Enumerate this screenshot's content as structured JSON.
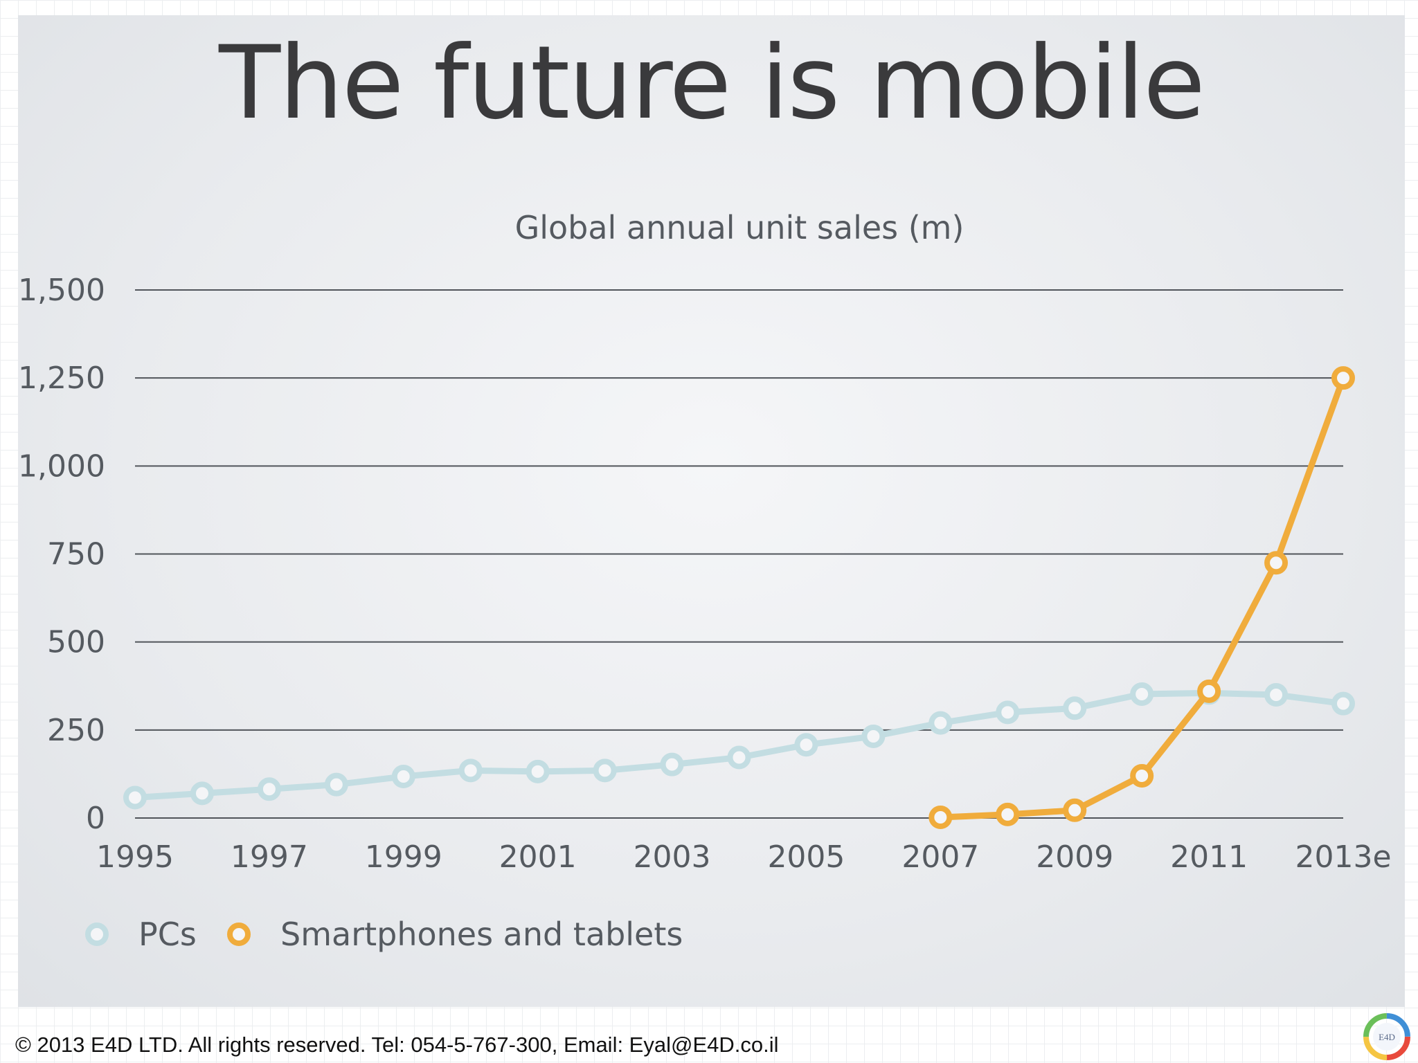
{
  "slide": {
    "title": "The future is mobile"
  },
  "chart_data": {
    "type": "line",
    "title": "Global annual unit sales (m)",
    "xlabel": "",
    "ylabel": "",
    "ylim": [
      0,
      1500
    ],
    "y_ticks": [
      0,
      250,
      500,
      750,
      1000,
      1250,
      1500
    ],
    "y_tick_labels": [
      "0",
      "250",
      "500",
      "750",
      "1,000",
      "1,250",
      "1,500"
    ],
    "categories": [
      "1995",
      "1996",
      "1997",
      "1998",
      "1999",
      "2000",
      "2001",
      "2002",
      "2003",
      "2004",
      "2005",
      "2006",
      "2007",
      "2008",
      "2009",
      "2010",
      "2011",
      "2012",
      "2013e"
    ],
    "x_tick_labels": [
      "1995",
      "1997",
      "1999",
      "2001",
      "2003",
      "2005",
      "2007",
      "2009",
      "2011",
      "2013e"
    ],
    "grid": true,
    "legend_position": "bottom-left",
    "series": [
      {
        "name": "PCs",
        "color": "#c3dde2",
        "values": [
          58,
          70,
          82,
          95,
          118,
          135,
          132,
          135,
          152,
          172,
          208,
          232,
          270,
          300,
          312,
          352,
          355,
          350,
          325
        ]
      },
      {
        "name": "Smartphones and tablets",
        "color": "#f0ac3c",
        "values": [
          null,
          null,
          null,
          null,
          null,
          null,
          null,
          null,
          null,
          null,
          null,
          null,
          2,
          10,
          22,
          120,
          360,
          725,
          1250
        ]
      }
    ]
  },
  "footer": {
    "text": "© 2013 E4D LTD. All rights reserved. Tel: 054-5-767-300, Email: Eyal@E4D.co.il"
  },
  "logo": {
    "text": "E4D",
    "colors": [
      "#e84a3c",
      "#f5c542",
      "#6bbf59",
      "#3f8fd6"
    ]
  }
}
